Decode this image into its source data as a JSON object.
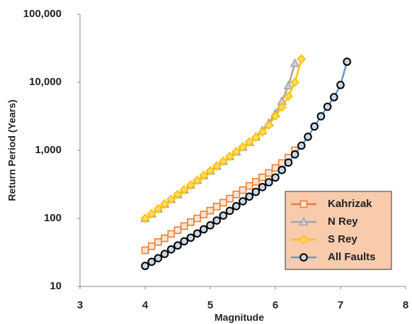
{
  "chart_data": {
    "type": "line",
    "xlabel": "Magnitude",
    "ylabel": "Return Period (Years)",
    "xlim": [
      3,
      8
    ],
    "xticks": [
      3,
      4,
      5,
      6,
      7,
      8
    ],
    "ylim": [
      10,
      100000
    ],
    "yscale": "log",
    "yticks": [
      10,
      100,
      {
        "value": 1000,
        "label": "1,000"
      },
      {
        "value": 10000,
        "label": "10,000"
      },
      {
        "value": 100000,
        "label": "100,000"
      }
    ],
    "grid": false,
    "legend": "lower right",
    "series": [
      {
        "name": "Kahrizak",
        "color": "#ed7d31",
        "marker": "square",
        "marker_color": "#ed7d31",
        "marker_fill": "#fbe5d6",
        "x": [
          4.0,
          4.1,
          4.2,
          4.3,
          4.4,
          4.5,
          4.6,
          4.7,
          4.8,
          4.9,
          5.0,
          5.1,
          5.2,
          5.3,
          5.4,
          5.5,
          5.6,
          5.7,
          5.8,
          5.9,
          6.0,
          6.1,
          6.2,
          6.3
        ],
        "values": [
          34,
          39,
          45,
          51,
          59,
          67,
          77,
          88,
          100,
          114,
          130,
          149,
          170,
          195,
          225,
          260,
          300,
          345,
          400,
          465,
          550,
          650,
          780,
          1000
        ]
      },
      {
        "name": "N Rey",
        "color": "#a5a5a5",
        "marker": "triangle",
        "marker_color": "#a5a5a5",
        "marker_fill": "#d0d0d0",
        "x": [
          4.0,
          4.1,
          4.2,
          4.3,
          4.4,
          4.5,
          4.6,
          4.7,
          4.8,
          4.9,
          5.0,
          5.1,
          5.2,
          5.3,
          5.4,
          5.5,
          5.6,
          5.7,
          5.8,
          5.9,
          6.0,
          6.1,
          6.2,
          6.3
        ],
        "values": [
          100,
          117,
          138,
          162,
          190,
          224,
          263,
          309,
          363,
          427,
          500,
          589,
          692,
          813,
          955,
          1120,
          1320,
          1580,
          1950,
          2510,
          3470,
          5250,
          8910,
          19000
        ]
      },
      {
        "name": "S Rey",
        "color": "#ffc000",
        "marker": "diamond",
        "marker_color": "#ffc000",
        "marker_fill": "#ffd966",
        "x": [
          4.0,
          4.1,
          4.2,
          4.3,
          4.4,
          4.5,
          4.6,
          4.7,
          4.8,
          4.9,
          5.0,
          5.1,
          5.2,
          5.3,
          5.4,
          5.5,
          5.6,
          5.7,
          5.8,
          5.9,
          6.0,
          6.1,
          6.2,
          6.3,
          6.4
        ],
        "values": [
          100,
          117,
          138,
          162,
          190,
          224,
          263,
          309,
          363,
          427,
          500,
          589,
          692,
          813,
          955,
          1120,
          1320,
          1550,
          1850,
          2350,
          3200,
          4300,
          6200,
          10000,
          22000
        ]
      },
      {
        "name": "All Faults",
        "color": "#5b9bd5",
        "marker": "circle",
        "marker_color": "#000000",
        "marker_fill": "#c9d6e3",
        "x": [
          4.0,
          4.1,
          4.2,
          4.3,
          4.4,
          4.5,
          4.6,
          4.7,
          4.8,
          4.9,
          5.0,
          5.1,
          5.2,
          5.3,
          5.4,
          5.5,
          5.6,
          5.7,
          5.8,
          5.9,
          6.0,
          6.1,
          6.2,
          6.3,
          6.4,
          6.5,
          6.6,
          6.7,
          6.8,
          6.9,
          7.0,
          7.1
        ],
        "values": [
          20,
          23,
          26,
          30,
          35,
          40,
          46,
          52,
          60,
          69,
          79,
          93,
          110,
          129,
          151,
          178,
          209,
          245,
          288,
          339,
          398,
          513,
          661,
          871,
          1170,
          1580,
          2240,
          3160,
          4370,
          6030,
          9120,
          20000
        ]
      }
    ]
  }
}
